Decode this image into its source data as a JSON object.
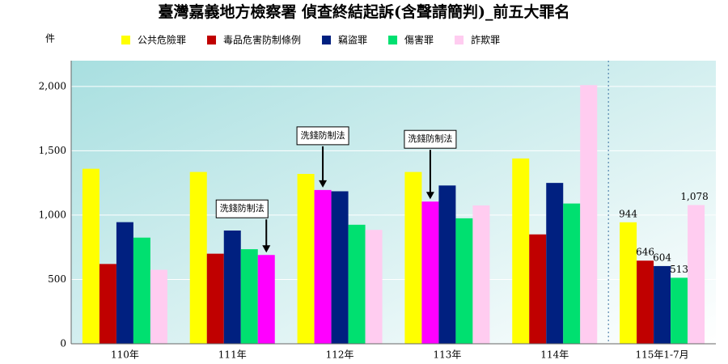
{
  "chart_data": {
    "type": "bar",
    "title": "臺灣嘉義地方檢察署 偵查終結起訴(含聲請簡判)_前五大罪名",
    "y_label": "件",
    "categories": [
      "110年",
      "111年",
      "112年",
      "113年",
      "114年",
      "115年1-7月"
    ],
    "series": [
      {
        "name": "公共危險罪",
        "color": "#ffff00",
        "values": [
          1360,
          1335,
          1320,
          1335,
          1440,
          944
        ],
        "value_labels": [
          null,
          null,
          null,
          null,
          null,
          "944"
        ]
      },
      {
        "name": "毒品危害防制條例",
        "color": "#c00000",
        "colors": [
          "#c00000",
          "#c00000",
          "#ff00ff",
          "#ff00ff",
          "#c00000",
          "#c00000"
        ],
        "values": [
          620,
          700,
          1195,
          1105,
          850,
          646
        ],
        "value_labels": [
          null,
          null,
          null,
          null,
          null,
          "646"
        ]
      },
      {
        "name": "竊盜罪",
        "color": "#002080",
        "values": [
          945,
          880,
          1185,
          1230,
          1250,
          604
        ],
        "value_labels": [
          null,
          null,
          null,
          null,
          null,
          "604"
        ]
      },
      {
        "name": "傷害罪",
        "color": "#00e070",
        "values": [
          825,
          735,
          925,
          975,
          1090,
          513
        ],
        "value_labels": [
          null,
          null,
          null,
          null,
          null,
          "513"
        ]
      },
      {
        "name": "詐欺罪",
        "color": "#ffccf0",
        "colors": [
          "#ffccf0",
          "#ff00ff",
          "#ffccf0",
          "#ffccf0",
          "#ffccf0",
          "#ffccf0"
        ],
        "values": [
          575,
          690,
          885,
          1075,
          2010,
          1078
        ],
        "value_labels": [
          null,
          null,
          null,
          null,
          null,
          "1,078"
        ]
      }
    ],
    "annotations": [
      {
        "text": "洗錢防制法"
      },
      {
        "text": "洗錢防制法"
      },
      {
        "text": "洗錢防制法"
      }
    ],
    "ylim": [
      0,
      2200
    ],
    "yticks": [
      0,
      500,
      {
        "value": 1000,
        "label": "1,000"
      },
      {
        "value": 1500,
        "label": "1,500"
      },
      {
        "value": 2000,
        "label": "2,000"
      }
    ],
    "grid": true
  }
}
